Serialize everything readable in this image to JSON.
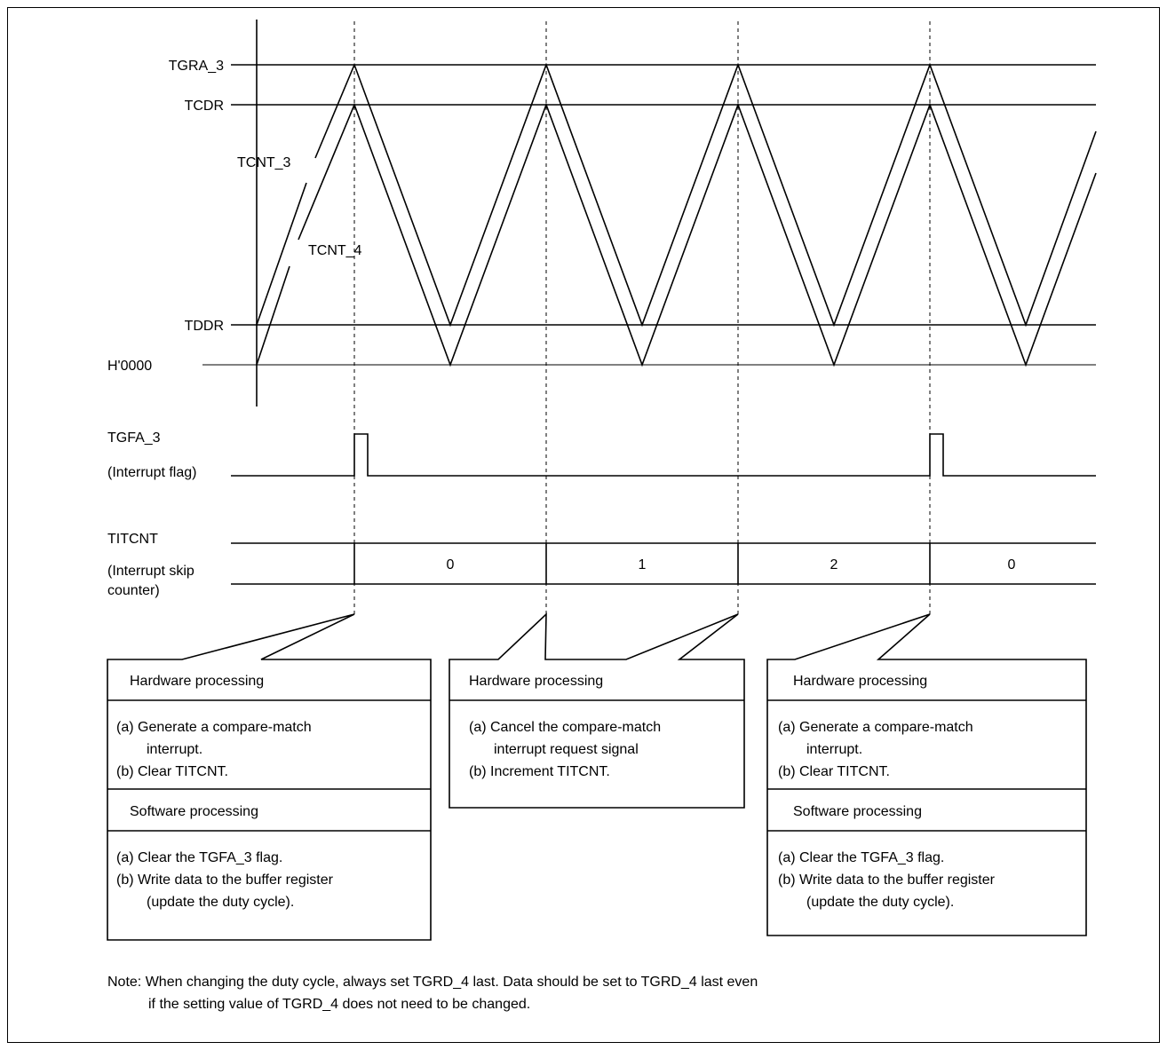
{
  "levels": {
    "tgra3": "TGRA_3",
    "tcdr": "TCDR",
    "tddr": "TDDR",
    "zero": "H'0000"
  },
  "waves": {
    "tcnt3": "TCNT_3",
    "tcnt4": "TCNT_4"
  },
  "flag": {
    "name": "TGFA_3",
    "desc": "(Interrupt flag)"
  },
  "skip_counter": {
    "name": "TITCNT",
    "desc_line1": "(Interrupt skip",
    "desc_line2": "counter)",
    "values": [
      "0",
      "1",
      "2",
      "0"
    ]
  },
  "boxes": [
    {
      "hw_title": "Hardware processing",
      "hw_lines": [
        "(a) Generate a compare-match",
        "interrupt.",
        "(b) Clear TITCNT."
      ],
      "sw_title": "Software processing",
      "sw_lines": [
        "(a) Clear the TGFA_3 flag.",
        "(b) Write data to the buffer register",
        "(update the duty cycle)."
      ]
    },
    {
      "hw_title": "Hardware processing",
      "hw_lines": [
        "(a) Cancel the compare-match",
        "interrupt request signal",
        "(b) Increment TITCNT."
      ]
    },
    {
      "hw_title": "Hardware processing",
      "hw_lines": [
        "(a) Generate a compare-match",
        "interrupt.",
        "(b) Clear TITCNT."
      ],
      "sw_title": "Software processing",
      "sw_lines": [
        "(a) Clear the TGFA_3 flag.",
        "(b) Write data to the buffer register",
        "(update the duty cycle)."
      ]
    }
  ],
  "note": {
    "line1": "Note:  When changing the duty cycle, always set TGRD_4 last. Data should be set to TGRD_4 last even",
    "line2": "if the setting value of TGRD_4 does not need to be changed."
  }
}
